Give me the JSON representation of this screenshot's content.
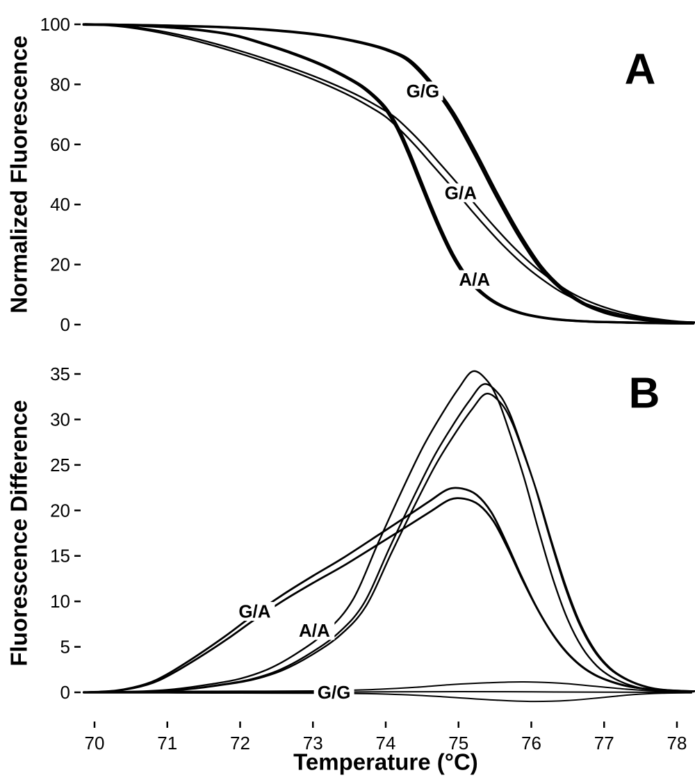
{
  "x_axis": {
    "title": "Temperature (°C)"
  },
  "chart_data": [
    {
      "type": "line",
      "panel_letter": "A",
      "title": "",
      "xlabel": "Temperature (°C)",
      "ylabel": "Normalized Fluorescence",
      "xlim": [
        69.85,
        78.2
      ],
      "ylim": [
        0,
        100
      ],
      "xticks": [
        70,
        71,
        72,
        73,
        74,
        75,
        76,
        77,
        78
      ],
      "yticks": [
        0,
        20,
        40,
        60,
        80,
        100
      ],
      "grid": false,
      "legend_position": "inline-labels",
      "line_color": "#000000",
      "series": [
        {
          "name": "G/G",
          "width": 3.4,
          "replicates": [
            {
              "dx": 0,
              "sy": 1
            },
            {
              "dx": 0.035,
              "sy": 1
            }
          ],
          "points": [
            [
              69.85,
              99.9
            ],
            [
              70.5,
              99.8
            ],
            [
              71.1,
              99.5
            ],
            [
              71.7,
              99.1
            ],
            [
              72.3,
              98.3
            ],
            [
              72.9,
              97.0
            ],
            [
              73.3,
              95.6
            ],
            [
              73.7,
              93.6
            ],
            [
              74.0,
              91.5
            ],
            [
              74.3,
              88.0
            ],
            [
              74.6,
              80.5
            ],
            [
              74.9,
              70.5
            ],
            [
              75.2,
              57.5
            ],
            [
              75.5,
              43.5
            ],
            [
              75.8,
              30.5
            ],
            [
              76.1,
              19.5
            ],
            [
              76.4,
              12.0
            ],
            [
              76.7,
              7.0
            ],
            [
              77.0,
              4.0
            ],
            [
              77.3,
              2.3
            ],
            [
              77.6,
              1.4
            ],
            [
              77.9,
              0.9
            ],
            [
              78.2,
              0.7
            ]
          ]
        },
        {
          "name": "G/A",
          "width": 2.4,
          "replicates": [
            {
              "dx": 0,
              "sy": 1
            },
            {
              "dx": 0.12,
              "sy": 1
            }
          ],
          "points": [
            [
              69.85,
              100
            ],
            [
              70.3,
              99.4
            ],
            [
              70.7,
              98.1
            ],
            [
              71.1,
              96.2
            ],
            [
              71.5,
              93.8
            ],
            [
              71.9,
              91.0
            ],
            [
              72.3,
              87.9
            ],
            [
              72.7,
              84.5
            ],
            [
              73.1,
              80.7
            ],
            [
              73.5,
              76.3
            ],
            [
              73.8,
              72.3
            ],
            [
              74.0,
              69.2
            ],
            [
              74.2,
              64.8
            ],
            [
              74.4,
              59.8
            ],
            [
              74.6,
              54.3
            ],
            [
              74.8,
              48.8
            ],
            [
              75.0,
              43.2
            ],
            [
              75.2,
              37.4
            ],
            [
              75.4,
              31.9
            ],
            [
              75.6,
              26.7
            ],
            [
              75.8,
              22.0
            ],
            [
              76.0,
              17.8
            ],
            [
              76.2,
              14.2
            ],
            [
              76.4,
              11.0
            ],
            [
              76.6,
              8.5
            ],
            [
              76.8,
              6.5
            ],
            [
              77.0,
              4.9
            ],
            [
              77.2,
              3.6
            ],
            [
              77.4,
              2.6
            ],
            [
              77.6,
              1.9
            ],
            [
              77.8,
              1.3
            ],
            [
              78.0,
              0.9
            ],
            [
              78.2,
              0.7
            ]
          ]
        },
        {
          "name": "A/A",
          "width": 3.4,
          "replicates": [
            {
              "dx": 0,
              "sy": 1
            },
            {
              "dx": 0.025,
              "sy": 1
            }
          ],
          "points": [
            [
              69.85,
              100
            ],
            [
              70.4,
              99.8
            ],
            [
              70.9,
              99.2
            ],
            [
              71.4,
              98.2
            ],
            [
              71.9,
              96.4
            ],
            [
              72.3,
              93.6
            ],
            [
              72.7,
              90.4
            ],
            [
              73.1,
              86.6
            ],
            [
              73.4,
              83.0
            ],
            [
              73.65,
              79.5
            ],
            [
              73.85,
              75.5
            ],
            [
              74.0,
              71.5
            ],
            [
              74.15,
              65.5
            ],
            [
              74.3,
              57.5
            ],
            [
              74.45,
              48.5
            ],
            [
              74.6,
              39.5
            ],
            [
              74.75,
              31.0
            ],
            [
              74.9,
              23.5
            ],
            [
              75.05,
              17.5
            ],
            [
              75.2,
              13.0
            ],
            [
              75.4,
              8.8
            ],
            [
              75.6,
              6.0
            ],
            [
              75.85,
              3.8
            ],
            [
              76.1,
              2.5
            ],
            [
              76.4,
              1.6
            ],
            [
              76.8,
              1.0
            ],
            [
              77.3,
              0.7
            ],
            [
              77.7,
              0.5
            ],
            [
              78.2,
              0.4
            ]
          ]
        }
      ],
      "labels": [
        {
          "text": "G/G",
          "x": 74.51,
          "y": 77.8
        },
        {
          "text": "G/A",
          "x": 75.03,
          "y": 43.9
        },
        {
          "text": "A/A",
          "x": 75.22,
          "y": 15.0
        }
      ]
    },
    {
      "type": "line",
      "panel_letter": "B",
      "title": "",
      "xlabel": "Temperature (°C)",
      "ylabel": "Fluorescence Difference",
      "xlim": [
        69.85,
        78.2
      ],
      "ylim": [
        0,
        35
      ],
      "xticks": [
        70,
        71,
        72,
        73,
        74,
        75,
        76,
        77,
        78
      ],
      "yticks": [
        0,
        5,
        10,
        15,
        20,
        25,
        30,
        35
      ],
      "grid": false,
      "legend_position": "inline-labels",
      "line_color": "#000000",
      "series": [
        {
          "name": "G/A",
          "width": 2.8,
          "replicates": [
            {
              "dx": 0,
              "sy": 1
            },
            {
              "dx": 0.03,
              "sy": 0.95
            }
          ],
          "points": [
            [
              69.85,
              0
            ],
            [
              70.3,
              0.2
            ],
            [
              70.7,
              0.9
            ],
            [
              71.0,
              2.0
            ],
            [
              71.4,
              4.0
            ],
            [
              71.8,
              6.2
            ],
            [
              72.2,
              8.6
            ],
            [
              72.6,
              10.8
            ],
            [
              73.0,
              12.8
            ],
            [
              73.4,
              14.7
            ],
            [
              73.9,
              17.3
            ],
            [
              74.3,
              19.4
            ],
            [
              74.6,
              21.0
            ],
            [
              74.85,
              22.3
            ],
            [
              75.05,
              22.4
            ],
            [
              75.25,
              21.7
            ],
            [
              75.45,
              19.8
            ],
            [
              75.65,
              16.6
            ],
            [
              75.85,
              13.0
            ],
            [
              76.05,
              9.7
            ],
            [
              76.25,
              6.9
            ],
            [
              76.45,
              4.7
            ],
            [
              76.65,
              3.1
            ],
            [
              76.85,
              2.0
            ],
            [
              77.05,
              1.3
            ],
            [
              77.3,
              0.7
            ],
            [
              77.6,
              0.35
            ],
            [
              77.9,
              0.15
            ],
            [
              78.2,
              0.1
            ]
          ]
        },
        {
          "name": "A/A",
          "width": 2.4,
          "replicates": [
            {
              "dx": 0,
              "sy": 1
            },
            {
              "dx": 0.15,
              "sy": 0.96
            },
            {
              "dx": 0.18,
              "sy": 0.93
            }
          ],
          "points": [
            [
              69.85,
              0
            ],
            [
              70.6,
              0.1
            ],
            [
              71.1,
              0.35
            ],
            [
              71.6,
              0.9
            ],
            [
              72.0,
              1.5
            ],
            [
              72.4,
              2.6
            ],
            [
              72.8,
              4.4
            ],
            [
              73.2,
              6.8
            ],
            [
              73.55,
              10.2
            ],
            [
              73.9,
              16.5
            ],
            [
              74.2,
              21.8
            ],
            [
              74.5,
              26.8
            ],
            [
              74.75,
              30.3
            ],
            [
              75.0,
              33.4
            ],
            [
              75.2,
              35.3
            ],
            [
              75.4,
              34.2
            ],
            [
              75.55,
              32.0
            ],
            [
              75.7,
              28.6
            ],
            [
              75.9,
              23.6
            ],
            [
              76.1,
              17.8
            ],
            [
              76.3,
              12.4
            ],
            [
              76.5,
              8.0
            ],
            [
              76.7,
              4.9
            ],
            [
              76.9,
              2.9
            ],
            [
              77.1,
              1.7
            ],
            [
              77.35,
              0.8
            ],
            [
              77.65,
              0.3
            ],
            [
              78.2,
              0.1
            ]
          ]
        },
        {
          "name": "G/G",
          "width": 2.0,
          "replicates": [
            {
              "dx": 0,
              "sy": 1
            }
          ],
          "points": [
            [
              69.85,
              0.05
            ],
            [
              71.0,
              0.1
            ],
            [
              72.0,
              0.12
            ],
            [
              73.0,
              0.15
            ],
            [
              73.8,
              0.3
            ],
            [
              74.4,
              0.55
            ],
            [
              74.9,
              0.85
            ],
            [
              75.4,
              1.05
            ],
            [
              75.9,
              1.15
            ],
            [
              76.4,
              1.0
            ],
            [
              76.9,
              0.65
            ],
            [
              77.3,
              0.35
            ],
            [
              77.7,
              0.15
            ],
            [
              78.2,
              0.08
            ]
          ]
        },
        {
          "name": "G/G",
          "width": 2.0,
          "replicates": [
            {
              "dx": 0,
              "sy": 1
            }
          ],
          "points": [
            [
              69.85,
              -0.05
            ],
            [
              71.0,
              -0.06
            ],
            [
              72.0,
              -0.08
            ],
            [
              73.0,
              -0.1
            ],
            [
              73.8,
              -0.15
            ],
            [
              74.5,
              -0.35
            ],
            [
              75.0,
              -0.6
            ],
            [
              75.5,
              -0.85
            ],
            [
              76.0,
              -1.0
            ],
            [
              76.5,
              -0.9
            ],
            [
              77.0,
              -0.55
            ],
            [
              77.4,
              -0.25
            ],
            [
              77.8,
              -0.1
            ],
            [
              78.2,
              -0.05
            ]
          ]
        },
        {
          "name": "G/G",
          "width": 2.0,
          "replicates": [
            {
              "dx": 0,
              "sy": 1
            }
          ],
          "points": [
            [
              69.85,
              0
            ],
            [
              71.0,
              0
            ],
            [
              72.0,
              0.02
            ],
            [
              73.0,
              0.03
            ],
            [
              74.0,
              0.05
            ],
            [
              75.0,
              0.08
            ],
            [
              76.0,
              0.05
            ],
            [
              77.0,
              0.02
            ],
            [
              78.2,
              0
            ]
          ]
        }
      ],
      "labels": [
        {
          "text": "G/A",
          "x": 72.2,
          "y": 8.9
        },
        {
          "text": "A/A",
          "x": 73.02,
          "y": 6.8
        },
        {
          "text": "G/G",
          "x": 73.29,
          "y": 0.0
        }
      ]
    }
  ]
}
